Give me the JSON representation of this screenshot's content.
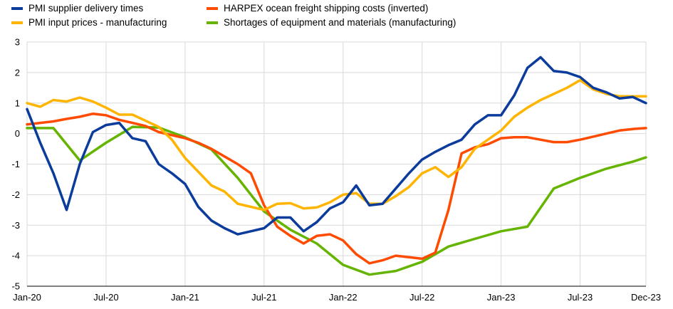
{
  "chart_data": {
    "type": "line",
    "title": "",
    "xlabel": "",
    "ylabel": "",
    "ylim": [
      -5,
      3
    ],
    "yticks": [
      3,
      2,
      1,
      0,
      -1,
      -2,
      -3,
      -4,
      -5
    ],
    "ytick_labels": [
      "3",
      "2",
      "1",
      "0",
      "-1",
      "-2",
      "-3",
      "-4",
      "-5"
    ],
    "grid": "horizontal",
    "legend_position": "top",
    "x_range": [
      "Jan-20",
      "Dec-23"
    ],
    "x_tick_labels": [
      "Jan-20",
      "Jul-20",
      "Jan-21",
      "Jul-21",
      "Jan-22",
      "Jul-22",
      "Jan-23",
      "Jul-23",
      "Dec-23"
    ],
    "x_tick_months": [
      0,
      6,
      12,
      18,
      24,
      30,
      36,
      42,
      47
    ],
    "series": [
      {
        "name": "PMI supplier delivery times",
        "color": "#0b3c9c",
        "months": [
          0,
          1,
          2,
          3,
          4,
          5,
          6,
          7,
          8,
          9,
          10,
          11,
          12,
          13,
          14,
          15,
          16,
          17,
          18,
          19,
          20,
          21,
          22,
          23,
          24,
          25,
          26,
          27,
          28,
          29,
          30,
          31,
          32,
          33,
          34,
          35,
          36,
          37,
          38,
          39,
          40,
          41,
          42,
          43,
          44,
          45,
          46,
          47
        ],
        "values": [
          0.8,
          -0.3,
          -1.3,
          -2.5,
          -1.0,
          0.05,
          0.28,
          0.35,
          -0.15,
          -0.25,
          -1.0,
          -1.3,
          -1.65,
          -2.4,
          -2.85,
          -3.1,
          -3.3,
          -3.2,
          -3.1,
          -2.75,
          -2.75,
          -3.2,
          -2.9,
          -2.45,
          -2.25,
          -1.7,
          -2.35,
          -2.3,
          -1.8,
          -1.3,
          -0.85,
          -0.6,
          -0.38,
          -0.2,
          0.3,
          0.6,
          0.6,
          1.25,
          2.15,
          2.5,
          2.05,
          2.0,
          1.85,
          1.5,
          1.35,
          1.15,
          1.2,
          1.0
        ]
      },
      {
        "name": "PMI input prices - manufacturing",
        "color": "#ffb400",
        "months": [
          0,
          1,
          2,
          3,
          4,
          5,
          6,
          7,
          8,
          9,
          10,
          11,
          12,
          13,
          14,
          15,
          16,
          17,
          18,
          19,
          20,
          21,
          22,
          23,
          24,
          25,
          26,
          27,
          28,
          29,
          30,
          31,
          32,
          33,
          34,
          35,
          36,
          37,
          38,
          39,
          40,
          41,
          42,
          43,
          44,
          45,
          46,
          47
        ],
        "values": [
          1.0,
          0.88,
          1.1,
          1.05,
          1.18,
          1.05,
          0.85,
          0.62,
          0.62,
          0.42,
          0.22,
          -0.2,
          -0.8,
          -1.25,
          -1.7,
          -1.9,
          -2.3,
          -2.4,
          -2.5,
          -2.3,
          -2.28,
          -2.45,
          -2.42,
          -2.25,
          -2.0,
          -1.95,
          -2.3,
          -2.3,
          -2.05,
          -1.75,
          -1.3,
          -1.1,
          -1.42,
          -1.1,
          -0.5,
          -0.2,
          0.1,
          0.55,
          0.85,
          1.1,
          1.3,
          1.5,
          1.75,
          1.45,
          1.3,
          1.22,
          1.22,
          1.22
        ]
      },
      {
        "name": "HARPEX ocean freight shipping costs (inverted)",
        "color": "#ff4b00",
        "months": [
          0,
          1,
          2,
          3,
          4,
          5,
          6,
          7,
          8,
          9,
          10,
          11,
          12,
          13,
          14,
          15,
          16,
          17,
          18,
          19,
          20,
          21,
          22,
          23,
          24,
          25,
          26,
          27,
          28,
          29,
          30,
          31,
          32,
          33,
          34,
          35,
          36,
          37,
          38,
          39,
          40,
          41,
          42,
          43,
          44,
          45,
          46,
          47
        ],
        "values": [
          0.3,
          0.35,
          0.4,
          0.48,
          0.55,
          0.65,
          0.6,
          0.45,
          0.35,
          0.25,
          0.05,
          -0.05,
          -0.15,
          -0.3,
          -0.5,
          -0.75,
          -1.0,
          -1.3,
          -2.35,
          -3.05,
          -3.35,
          -3.6,
          -3.35,
          -3.3,
          -3.5,
          -3.95,
          -4.25,
          -4.15,
          -4.0,
          -4.05,
          -4.1,
          -3.9,
          -2.5,
          -0.65,
          -0.45,
          -0.35,
          -0.15,
          -0.12,
          -0.12,
          -0.2,
          -0.28,
          -0.28,
          -0.2,
          -0.1,
          0.0,
          0.1,
          0.15,
          0.18
        ]
      },
      {
        "name": "Shortages of equipment and materials (manufacturing)",
        "color": "#64b400",
        "months": [
          0,
          2,
          4,
          6,
          8,
          10,
          12,
          14,
          16,
          18,
          20,
          22,
          24,
          26,
          28,
          30,
          32,
          34,
          36,
          38,
          40,
          42,
          44,
          46,
          47
        ],
        "values": [
          0.18,
          0.18,
          -0.88,
          -0.3,
          0.22,
          0.2,
          -0.12,
          -0.52,
          -1.45,
          -2.55,
          -3.15,
          -3.6,
          -4.3,
          -4.62,
          -4.5,
          -4.2,
          -3.7,
          -3.45,
          -3.2,
          -3.05,
          -1.8,
          -1.45,
          -1.15,
          -0.92,
          -0.78
        ]
      }
    ]
  }
}
